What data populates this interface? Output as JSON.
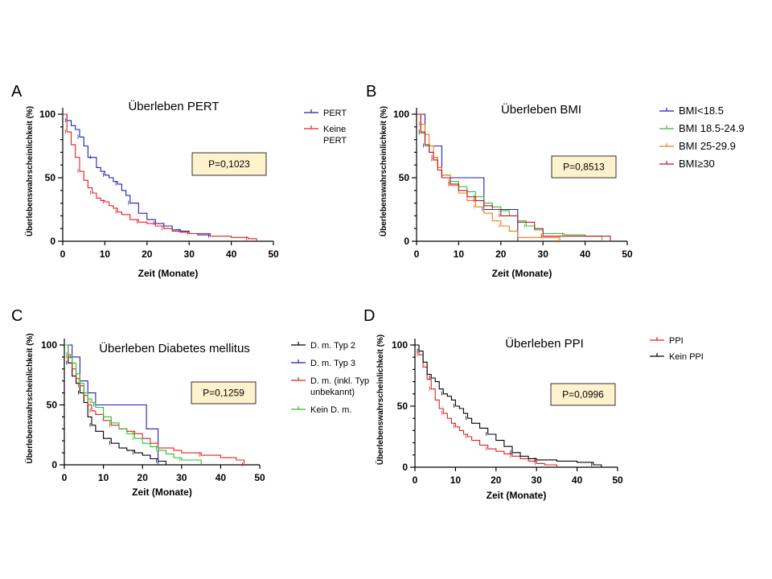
{
  "chart_data": [
    {
      "panel": "A",
      "type": "line",
      "title": "Überleben PERT",
      "xlabel": "Zeit (Monate)",
      "ylabel": "Überlebenswahrscheinlichkeit (%)",
      "xlim": [
        0,
        50
      ],
      "ylim": [
        0,
        100
      ],
      "xticks": [
        0,
        10,
        20,
        30,
        40,
        50
      ],
      "yticks": [
        0,
        50,
        100
      ],
      "pvalue": "P=0,1023",
      "series": [
        {
          "name": "PERT",
          "legend_lines": [
            "PERT"
          ],
          "color": "#1f1fb4",
          "x": [
            0,
            1,
            2,
            3,
            4,
            5,
            6,
            7,
            8,
            9,
            10,
            11,
            12,
            13,
            14,
            15,
            16,
            18,
            20,
            22,
            24,
            26,
            28,
            30,
            32,
            35
          ],
          "y": [
            100,
            95,
            91,
            88,
            82,
            75,
            66,
            66,
            58,
            55,
            52,
            50,
            47,
            45,
            40,
            36,
            30,
            22,
            17,
            14,
            12,
            9,
            8,
            6,
            5,
            4
          ]
        },
        {
          "name": "Keine PERT",
          "legend_lines": [
            "Keine",
            "PERT"
          ],
          "color": "#e02020",
          "x": [
            0,
            1,
            2,
            3,
            4,
            5,
            6,
            7,
            8,
            9,
            10,
            11,
            12,
            13,
            14,
            16,
            18,
            20,
            22,
            24,
            26,
            28,
            30,
            35,
            40,
            44,
            46
          ],
          "y": [
            100,
            86,
            76,
            66,
            55,
            48,
            42,
            38,
            34,
            32,
            31,
            28,
            26,
            23,
            21,
            17,
            15,
            14,
            12,
            10,
            8,
            7,
            6,
            4,
            3,
            2,
            0
          ]
        }
      ]
    },
    {
      "panel": "B",
      "type": "line",
      "title": "Überleben BMI",
      "xlabel": "Zeit (Monate)",
      "ylabel": "Überlebenswahrscheinlichkeit (%)",
      "xlim": [
        0,
        50
      ],
      "ylim": [
        0,
        100
      ],
      "xticks": [
        0,
        10,
        20,
        30,
        40,
        50
      ],
      "yticks": [
        0,
        50,
        100
      ],
      "pvalue": "P=0,8513",
      "series": [
        {
          "name": "BMI<18.5",
          "legend_lines": [
            "BMI<18.5"
          ],
          "color": "#1f1fb4",
          "x": [
            0,
            2,
            4,
            6,
            16,
            24
          ],
          "y": [
            100,
            75,
            75,
            50,
            25,
            0
          ]
        },
        {
          "name": "BMI 18.5-24.9",
          "legend_lines": [
            "BMI 18.5-24.9"
          ],
          "color": "#2ec02e",
          "x": [
            0,
            1,
            2,
            3,
            4,
            5,
            6,
            8,
            10,
            12,
            14,
            16,
            18,
            20,
            22,
            24,
            26,
            28,
            30,
            35,
            40,
            44
          ],
          "y": [
            100,
            85,
            75,
            70,
            66,
            58,
            52,
            47,
            43,
            39,
            35,
            30,
            27,
            24,
            20,
            16,
            12,
            9,
            6,
            5,
            4,
            0
          ]
        },
        {
          "name": "BMI 25-29.9",
          "legend_lines": [
            "BMI 25-29.9"
          ],
          "color": "#f07a10",
          "x": [
            0,
            1,
            2,
            3,
            4,
            5,
            6,
            8,
            10,
            12,
            14,
            16,
            18,
            20,
            22,
            24,
            34
          ],
          "y": [
            100,
            92,
            84,
            75,
            66,
            58,
            52,
            44,
            38,
            32,
            27,
            22,
            16,
            12,
            8,
            3,
            0
          ]
        },
        {
          "name": "BMI≥30",
          "legend_lines": [
            "BMI≥30"
          ],
          "color": "#c8102e",
          "x": [
            0,
            1,
            2,
            3,
            4,
            5,
            6,
            8,
            10,
            12,
            14,
            16,
            18,
            20,
            24,
            28,
            30,
            46
          ],
          "y": [
            100,
            86,
            76,
            70,
            64,
            56,
            50,
            45,
            40,
            35,
            32,
            28,
            25,
            20,
            15,
            10,
            4,
            0
          ]
        }
      ]
    },
    {
      "panel": "C",
      "type": "line",
      "title": "Überleben Diabetes mellitus",
      "xlabel": "Zeit (Monate)",
      "ylabel": "Überlebenswahrscheinlichkeit (%)",
      "xlim": [
        0,
        50
      ],
      "ylim": [
        0,
        100
      ],
      "xticks": [
        0,
        10,
        20,
        30,
        40,
        50
      ],
      "yticks": [
        0,
        50,
        100
      ],
      "pvalue": "P=0,1259",
      "series": [
        {
          "name": "D. m. Typ 2",
          "legend_lines": [
            "D. m. Typ 2"
          ],
          "color": "#000000",
          "x": [
            0,
            1,
            2,
            3,
            4,
            5,
            6,
            7,
            8,
            10,
            12,
            14,
            16,
            18,
            20,
            22,
            24,
            26
          ],
          "y": [
            100,
            85,
            74,
            68,
            60,
            52,
            40,
            33,
            28,
            22,
            18,
            14,
            12,
            10,
            8,
            5,
            3,
            0
          ]
        },
        {
          "name": "D. m. Typ 3",
          "legend_lines": [
            "D. m. Typ 3"
          ],
          "color": "#1f1fb4",
          "x": [
            0,
            2,
            4,
            6,
            8,
            21,
            24
          ],
          "y": [
            100,
            90,
            70,
            60,
            50,
            30,
            0
          ]
        },
        {
          "name": "D. m. (inkl. Typ unbekannt)",
          "legend_lines": [
            "D. m. (inkl. Typ",
            "unbekannt)"
          ],
          "color": "#e02020",
          "x": [
            0,
            1,
            2,
            3,
            4,
            5,
            6,
            7,
            8,
            10,
            12,
            14,
            16,
            18,
            20,
            22,
            24,
            28,
            30,
            35,
            40,
            44,
            46
          ],
          "y": [
            100,
            90,
            80,
            72,
            66,
            58,
            50,
            45,
            42,
            37,
            33,
            30,
            28,
            26,
            22,
            18,
            14,
            12,
            10,
            8,
            6,
            4,
            0
          ]
        },
        {
          "name": "Kein D. m.",
          "legend_lines": [
            "Kein D. m."
          ],
          "color": "#2ec02e",
          "x": [
            0,
            1,
            2,
            3,
            4,
            5,
            6,
            7,
            8,
            10,
            12,
            14,
            16,
            18,
            20,
            22,
            24,
            26,
            28,
            30,
            35
          ],
          "y": [
            100,
            92,
            85,
            76,
            68,
            60,
            55,
            52,
            48,
            40,
            35,
            30,
            26,
            22,
            18,
            15,
            12,
            9,
            6,
            4,
            0
          ]
        }
      ]
    },
    {
      "panel": "D",
      "type": "line",
      "title": "Überleben PPI",
      "xlabel": "Zeit (Monate)",
      "ylabel": "Überlebenswahrscheinlichkeit (%)",
      "xlim": [
        0,
        50
      ],
      "ylim": [
        0,
        100
      ],
      "xticks": [
        0,
        10,
        20,
        30,
        40,
        50
      ],
      "yticks": [
        0,
        50,
        100
      ],
      "pvalue": "P=0,0996",
      "series": [
        {
          "name": "PPI",
          "legend_lines": [
            "PPI"
          ],
          "color": "#e02020",
          "x": [
            0,
            1,
            2,
            3,
            4,
            5,
            6,
            7,
            8,
            9,
            10,
            11,
            12,
            13,
            14,
            16,
            18,
            20,
            22,
            24,
            26,
            28,
            30,
            32,
            35
          ],
          "y": [
            100,
            92,
            82,
            72,
            64,
            55,
            48,
            44,
            40,
            36,
            33,
            30,
            27,
            25,
            22,
            18,
            15,
            13,
            11,
            9,
            7,
            5,
            3,
            2,
            0
          ]
        },
        {
          "name": "Kein PPI",
          "legend_lines": [
            "Kein PPI"
          ],
          "color": "#000000",
          "x": [
            0,
            1,
            2,
            3,
            4,
            5,
            6,
            7,
            8,
            9,
            10,
            11,
            12,
            13,
            14,
            16,
            18,
            20,
            22,
            24,
            26,
            28,
            30,
            35,
            40,
            44,
            46
          ],
          "y": [
            100,
            95,
            86,
            76,
            73,
            70,
            64,
            60,
            58,
            55,
            50,
            48,
            44,
            40,
            36,
            32,
            27,
            22,
            17,
            12,
            9,
            7,
            6,
            5,
            4,
            2,
            0
          ]
        }
      ]
    }
  ]
}
